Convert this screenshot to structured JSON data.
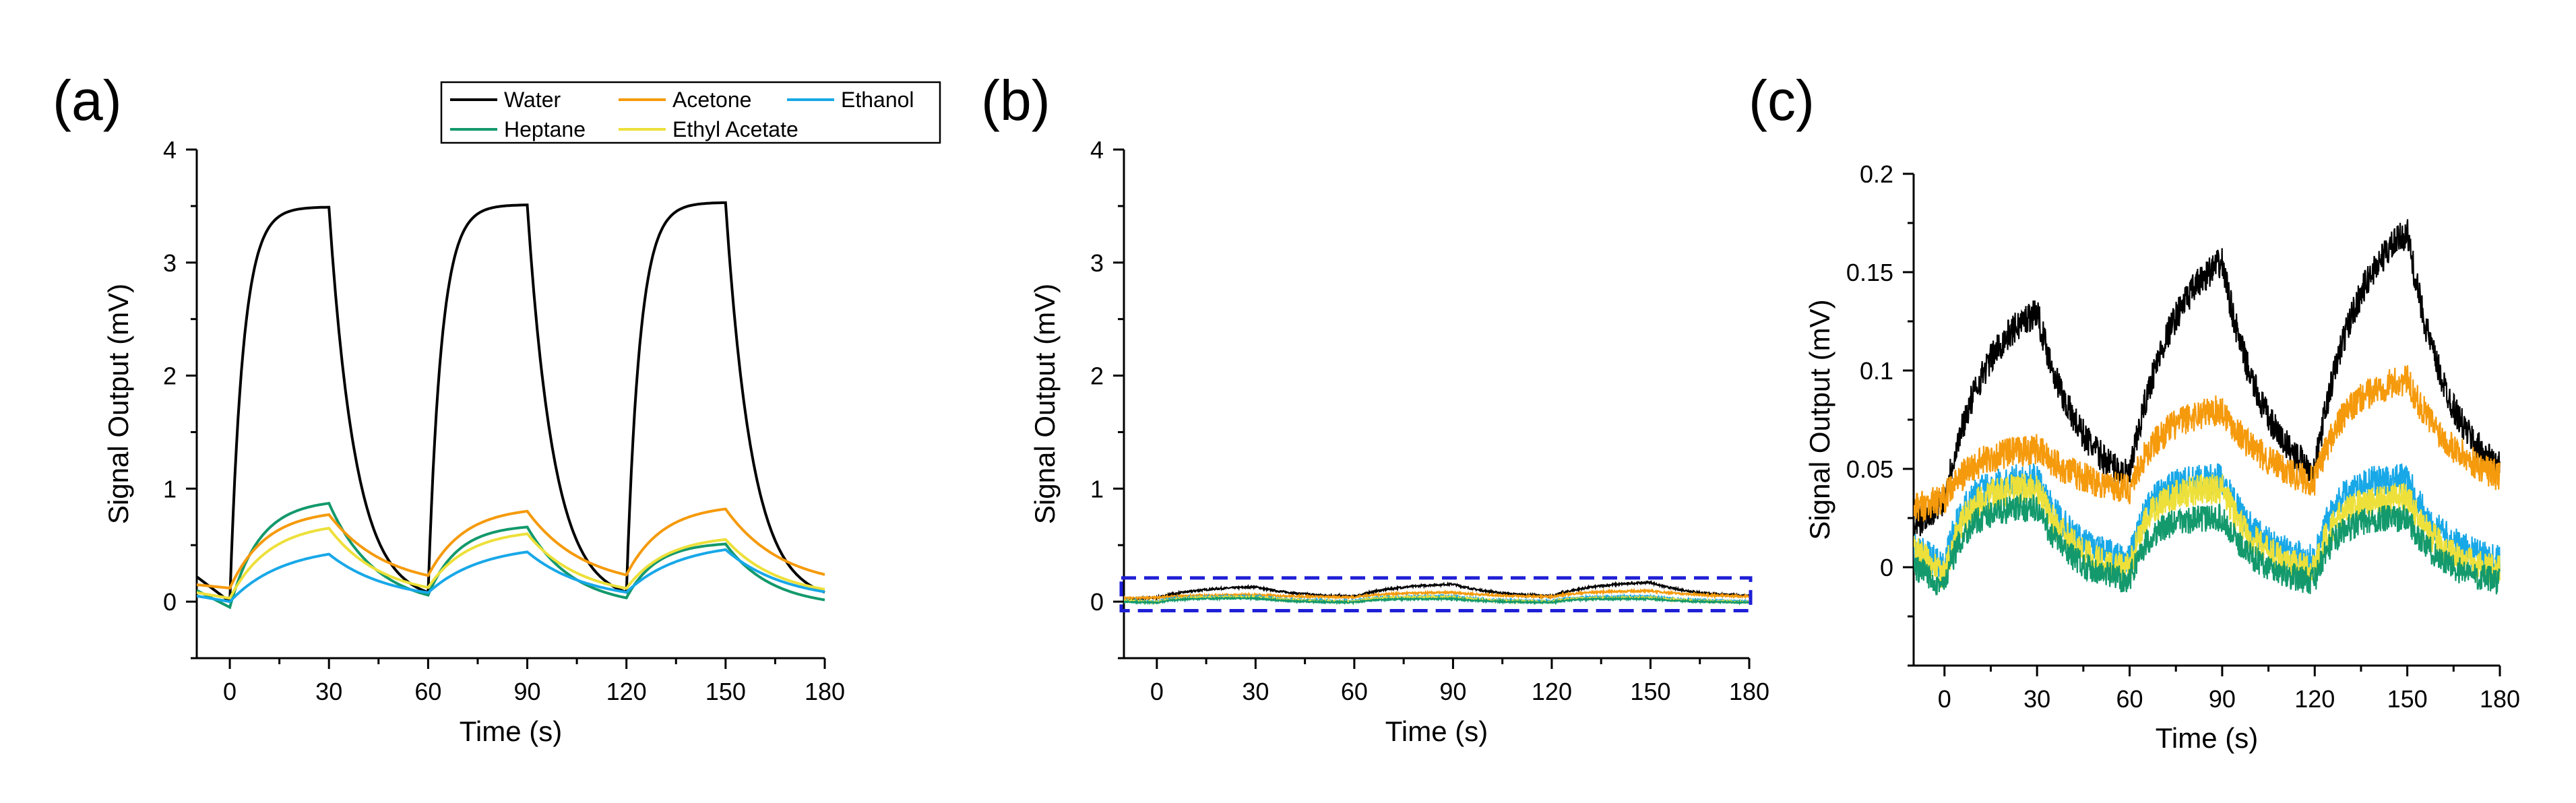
{
  "legend": {
    "entries": [
      {
        "series": "water",
        "label": "Water",
        "color": "#000000"
      },
      {
        "series": "acetone",
        "label": "Acetone",
        "color": "#f59a0c"
      },
      {
        "series": "ethanol",
        "label": "Ethanol",
        "color": "#18a8e8"
      },
      {
        "series": "heptane",
        "label": "Heptane",
        "color": "#13996c"
      },
      {
        "series": "ethylacetate",
        "label": "Ethyl Acetate",
        "color": "#ede03a"
      }
    ]
  },
  "chart_data": [
    {
      "id": "a",
      "panel_label": "(a)",
      "type": "line",
      "title": "",
      "xlabel": "Time (s)",
      "ylabel": "Signal Output (mV)",
      "xlim": [
        -10,
        180
      ],
      "ylim": [
        -0.5,
        4
      ],
      "xticks": [
        "0",
        "30",
        "60",
        "90",
        "120",
        "150",
        "180"
      ],
      "yticks": [
        "0",
        "1",
        "2",
        "3",
        "4"
      ],
      "series": [
        {
          "key": "water",
          "name": "Water",
          "color": "#000000",
          "start": 0.22,
          "peaks": [
            3.49,
            3.51,
            3.53
          ],
          "floor": 0.0,
          "tau_rise": 4.0,
          "tau_fall": 8.0,
          "noise": 0
        },
        {
          "key": "heptane",
          "name": "Heptane",
          "color": "#13996c",
          "start": 0.1,
          "peaks": [
            0.87,
            0.66,
            0.51
          ],
          "floor": -0.05,
          "tau_rise": 9.0,
          "tau_fall": 14.0,
          "noise": 0
        },
        {
          "key": "acetone",
          "name": "Acetone",
          "color": "#f59a0c",
          "start": 0.15,
          "peaks": [
            0.77,
            0.8,
            0.82
          ],
          "floor": 0.12,
          "tau_rise": 11.0,
          "tau_fall": 17.0,
          "noise": 0
        },
        {
          "key": "ethylacetate",
          "name": "Ethyl Acetate",
          "color": "#ede03a",
          "start": 0.08,
          "peaks": [
            0.65,
            0.6,
            0.55
          ],
          "floor": 0.03,
          "tau_rise": 12.0,
          "tau_fall": 16.0,
          "noise": 0
        },
        {
          "key": "ethanol",
          "name": "Ethanol",
          "color": "#18a8e8",
          "start": 0.05,
          "peaks": [
            0.42,
            0.44,
            0.46
          ],
          "floor": 0.0,
          "tau_rise": 16.0,
          "tau_fall": 18.0,
          "noise": 0
        }
      ]
    },
    {
      "id": "b",
      "panel_label": "(b)",
      "type": "line",
      "title": "",
      "xlabel": "Time (s)",
      "ylabel": "Signal Output (mV)",
      "xlim": [
        -10,
        180
      ],
      "ylim": [
        -0.5,
        4
      ],
      "xticks": [
        "0",
        "30",
        "60",
        "90",
        "120",
        "150",
        "180"
      ],
      "yticks": [
        "0",
        "1",
        "2",
        "3",
        "4"
      ],
      "zoom_box": {
        "x": [
          -10,
          180
        ],
        "y": [
          -0.08,
          0.21
        ],
        "color": "#1f1fd6"
      },
      "series": [
        {
          "key": "water",
          "name": "Water",
          "color": "#000000",
          "start": 0.02,
          "peaks": [
            0.13,
            0.155,
            0.17
          ],
          "floor": 0.035,
          "tau_rise": 14.0,
          "tau_fall": 14.0,
          "noise": 0.008
        },
        {
          "key": "acetone",
          "name": "Acetone",
          "color": "#f59a0c",
          "start": 0.03,
          "peaks": [
            0.06,
            0.08,
            0.095
          ],
          "floor": 0.035,
          "tau_rise": 10.0,
          "tau_fall": 18.0,
          "noise": 0.008
        },
        {
          "key": "ethanol",
          "name": "Ethanol",
          "color": "#18a8e8",
          "start": 0.01,
          "peaks": [
            0.045,
            0.045,
            0.045
          ],
          "floor": 0.0,
          "tau_rise": 6.0,
          "tau_fall": 12.0,
          "noise": 0.008
        },
        {
          "key": "ethylacetate",
          "name": "Ethyl Acetate",
          "color": "#ede03a",
          "start": 0.01,
          "peaks": [
            0.04,
            0.04,
            0.035
          ],
          "floor": -0.005,
          "tau_rise": 6.0,
          "tau_fall": 12.0,
          "noise": 0.008
        },
        {
          "key": "heptane",
          "name": "Heptane",
          "color": "#13996c",
          "start": 0.0,
          "peaks": [
            0.03,
            0.025,
            0.025
          ],
          "floor": -0.01,
          "tau_rise": 6.0,
          "tau_fall": 12.0,
          "noise": 0.007
        }
      ]
    },
    {
      "id": "c",
      "panel_label": "(c)",
      "type": "line",
      "title": "",
      "xlabel": "Time (s)",
      "ylabel": "Signal Output (mV)",
      "xlim": [
        -10,
        180
      ],
      "ylim": [
        -0.05,
        0.2
      ],
      "xticks": [
        "0",
        "30",
        "60",
        "90",
        "120",
        "150",
        "180"
      ],
      "yticks": [
        "0",
        "0.05",
        "0.1",
        "0.15",
        "0.2"
      ],
      "series": [
        {
          "key": "water",
          "name": "Water",
          "color": "#000000",
          "start": 0.02,
          "peaks": [
            0.13,
            0.155,
            0.17
          ],
          "floor": 0.035,
          "tau_rise": 14.0,
          "tau_fall": 14.0,
          "noise": 0.008
        },
        {
          "key": "acetone",
          "name": "Acetone",
          "color": "#f59a0c",
          "start": 0.03,
          "peaks": [
            0.06,
            0.08,
            0.095
          ],
          "floor": 0.035,
          "tau_rise": 10.0,
          "tau_fall": 18.0,
          "noise": 0.008
        },
        {
          "key": "ethanol",
          "name": "Ethanol",
          "color": "#18a8e8",
          "start": 0.01,
          "peaks": [
            0.045,
            0.045,
            0.045
          ],
          "floor": 0.0,
          "tau_rise": 6.0,
          "tau_fall": 12.0,
          "noise": 0.008
        },
        {
          "key": "ethylacetate",
          "name": "Ethyl Acetate",
          "color": "#ede03a",
          "start": 0.01,
          "peaks": [
            0.04,
            0.04,
            0.035
          ],
          "floor": -0.005,
          "tau_rise": 6.0,
          "tau_fall": 12.0,
          "noise": 0.008
        },
        {
          "key": "heptane",
          "name": "Heptane",
          "color": "#13996c",
          "start": 0.0,
          "peaks": [
            0.03,
            0.025,
            0.025
          ],
          "floor": -0.01,
          "tau_rise": 6.0,
          "tau_fall": 12.0,
          "noise": 0.007
        }
      ]
    }
  ]
}
